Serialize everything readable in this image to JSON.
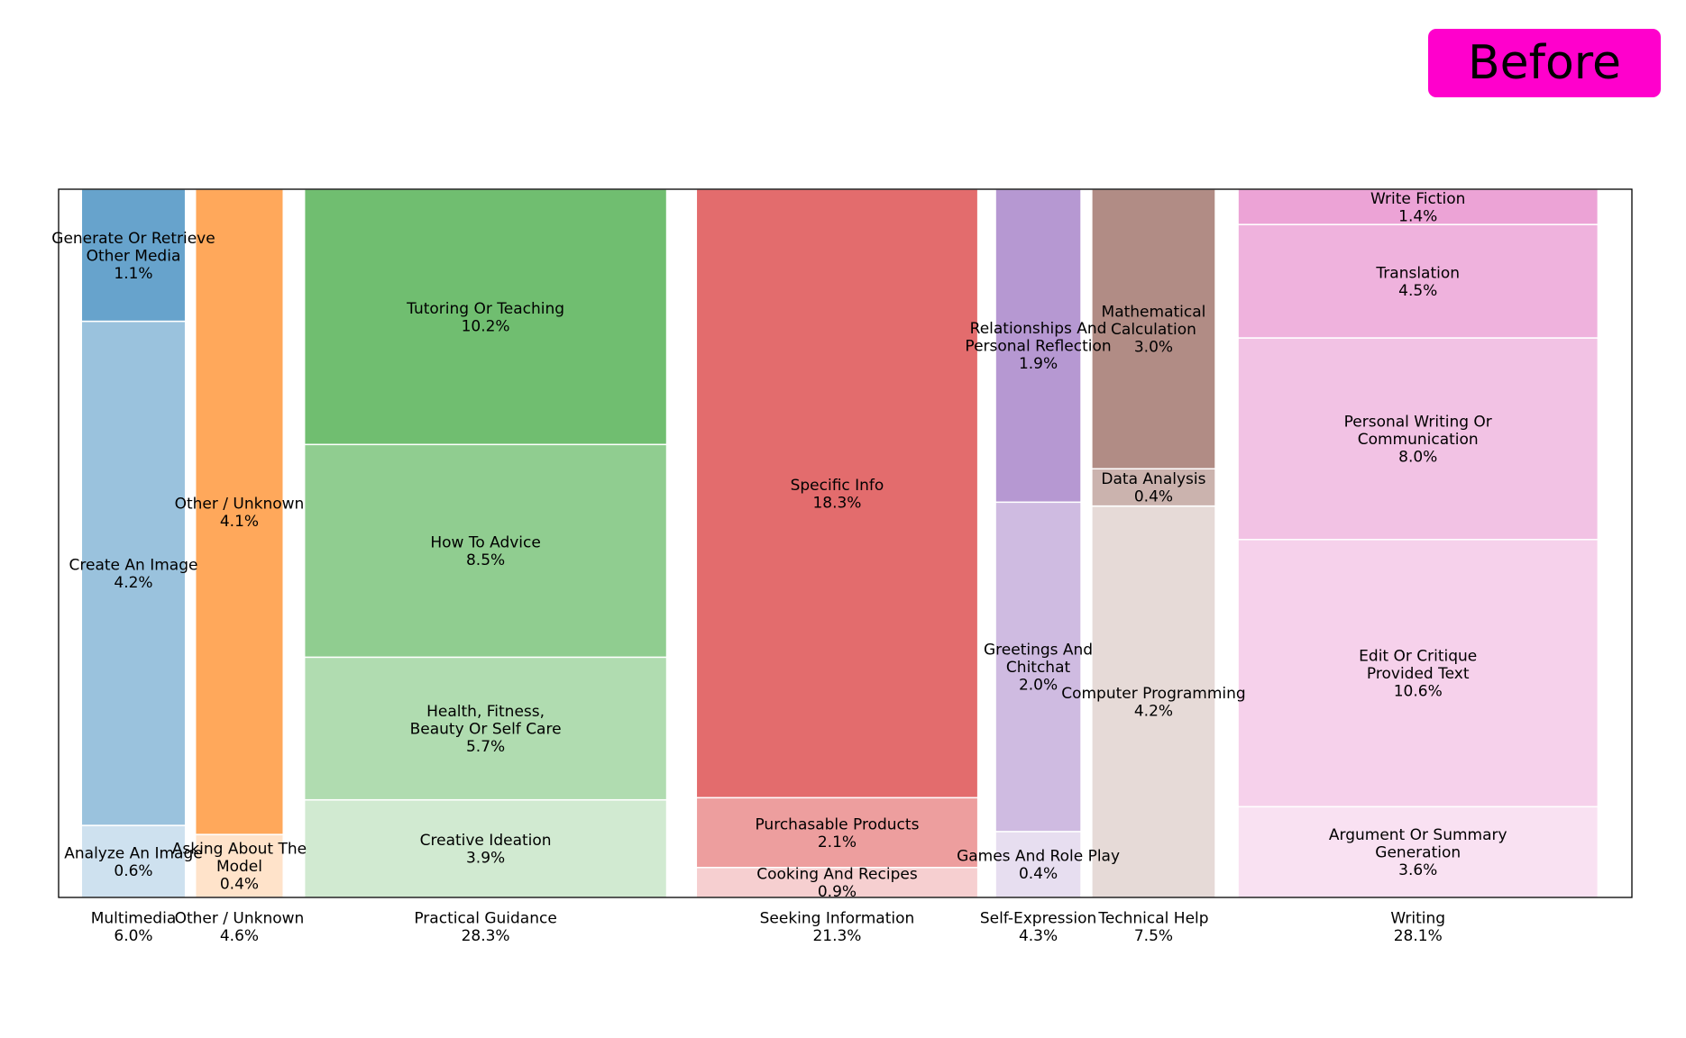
{
  "badge": {
    "label": "Before"
  },
  "chart_data": {
    "type": "stacked-bar",
    "title": "",
    "xlabel": "",
    "ylabel": "",
    "grid": false,
    "legend": "none",
    "categories": [
      {
        "name": "Multimedia",
        "total": "6.0%",
        "color": "#1f77b4",
        "segments": [
          {
            "label": "Analyze An Image",
            "value": 0.6
          },
          {
            "label": "Create An Image",
            "value": 4.2
          },
          {
            "label": "Generate Or Retrieve\nOther Media",
            "value": 1.1
          }
        ]
      },
      {
        "name": "Other / Unknown",
        "total": "4.6%",
        "color": "#ff7f0e",
        "segments": [
          {
            "label": "Asking About The\nModel",
            "value": 0.4
          },
          {
            "label": "Other / Unknown",
            "value": 4.1
          }
        ]
      },
      {
        "name": "Practical Guidance",
        "total": "28.3%",
        "color": "#2ca02c",
        "segments": [
          {
            "label": "Creative Ideation",
            "value": 3.9
          },
          {
            "label": "Health, Fitness,\nBeauty Or Self Care",
            "value": 5.7
          },
          {
            "label": "How To Advice",
            "value": 8.5
          },
          {
            "label": "Tutoring Or Teaching",
            "value": 10.2
          }
        ]
      },
      {
        "name": "Seeking Information",
        "total": "21.3%",
        "color": "#d62728",
        "segments": [
          {
            "label": "Cooking And Recipes",
            "value": 0.9
          },
          {
            "label": "Purchasable Products",
            "value": 2.1
          },
          {
            "label": "Specific Info",
            "value": 18.3
          }
        ]
      },
      {
        "name": "Self-Expression",
        "total": "4.3%",
        "color": "#9467bd",
        "segments": [
          {
            "label": "Games And Role Play",
            "value": 0.4
          },
          {
            "label": "Greetings And\nChitchat",
            "value": 2.0
          },
          {
            "label": "Relationships And\nPersonal Reflection",
            "value": 1.9
          }
        ]
      },
      {
        "name": "Technical Help",
        "total": "7.5%",
        "color": "#8c564b",
        "segments": [
          {
            "label": "Computer Programming",
            "value": 4.2
          },
          {
            "label": "Data Analysis",
            "value": 0.4
          },
          {
            "label": "Mathematical\nCalculation",
            "value": 3.0
          }
        ]
      },
      {
        "name": "Writing",
        "total": "28.1%",
        "color": "#e377c2",
        "segments": [
          {
            "label": "Argument Or Summary\nGeneration",
            "value": 3.6
          },
          {
            "label": "Edit Or Critique\nProvided Text",
            "value": 10.6
          },
          {
            "label": "Personal Writing Or\nCommunication",
            "value": 8.0
          },
          {
            "label": "Translation",
            "value": 4.5
          },
          {
            "label": "Write Fiction",
            "value": 1.4
          }
        ]
      }
    ]
  }
}
